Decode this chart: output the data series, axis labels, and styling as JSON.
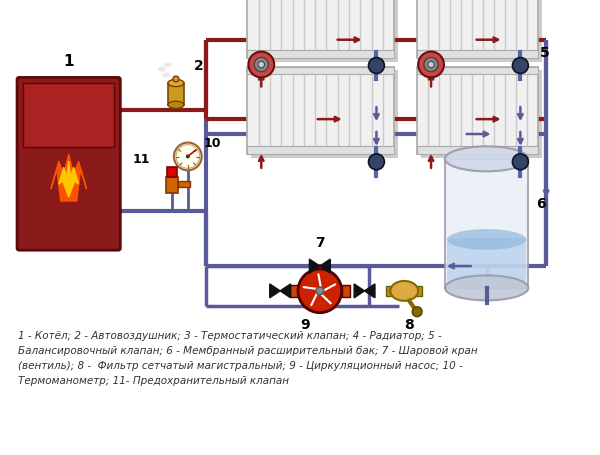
{
  "bg_color": "#ffffff",
  "pipe_hot_color": "#8B1A1A",
  "pipe_cold_color": "#5a5a9a",
  "pipe_lw": 3.0,
  "boiler_color": "#8B1A1A",
  "radiator_color": "#efefef",
  "legend": "1 - Котёл; 2 - Автовоздушник; 3 - Термостатический клапан; 4 - Радиатор; 5 -\nБалансировочный клапан; 6 - Мембранный расширительный бак; 7 - Шаровой кран\n(вентиль); 8 -  Фильтр сетчатый магистральный; 9 - Циркуляционный насос; 10 -\nТермоманометр; 11- Предохранительный клапан"
}
